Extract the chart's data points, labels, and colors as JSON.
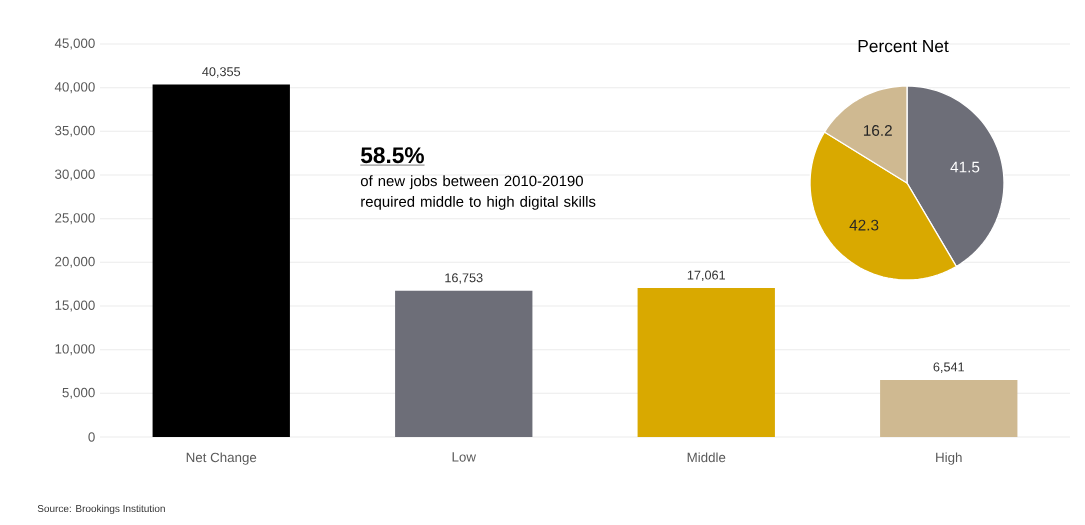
{
  "chart_data": [
    {
      "type": "bar",
      "categories": [
        "Net Change",
        "Low",
        "Middle",
        "High"
      ],
      "values": [
        40355,
        16753,
        17061,
        6541
      ],
      "colors": [
        "#000000",
        "#6d6e78",
        "#d9a900",
        "#cfb991"
      ],
      "value_labels": [
        "40,355",
        "16,753",
        "17,061",
        "6,541"
      ],
      "ylim": [
        0,
        45000
      ],
      "yticks": [
        0,
        {
          "value": 5000,
          "label": "5,000"
        },
        {
          "value": 10000,
          "label": "10,000"
        },
        {
          "value": 15000,
          "label": "15,000"
        },
        {
          "value": 20000,
          "label": "20,000"
        },
        {
          "value": 25000,
          "label": "25,000"
        },
        {
          "value": 30000,
          "label": "30,000"
        },
        {
          "value": 35000,
          "label": "35,000"
        },
        {
          "value": 40000,
          "label": "40,000"
        },
        {
          "value": 45000,
          "label": "45,000"
        }
      ],
      "grid": "y",
      "annotations": [
        "**58.5%**",
        "of new jobs between 2010-20190 required middle to high digital skills",
        "Source: Brookings Institution"
      ]
    },
    {
      "type": "pie",
      "title": "Percent Net",
      "categories": [
        null,
        null,
        null
      ],
      "values": [
        41.5,
        42.3,
        16.2
      ],
      "colors": [
        "#6d6e78",
        "#d9a900",
        "#cfb991"
      ],
      "value_labels": [
        "41.5",
        "42.3",
        "16.2"
      ]
    }
  ]
}
